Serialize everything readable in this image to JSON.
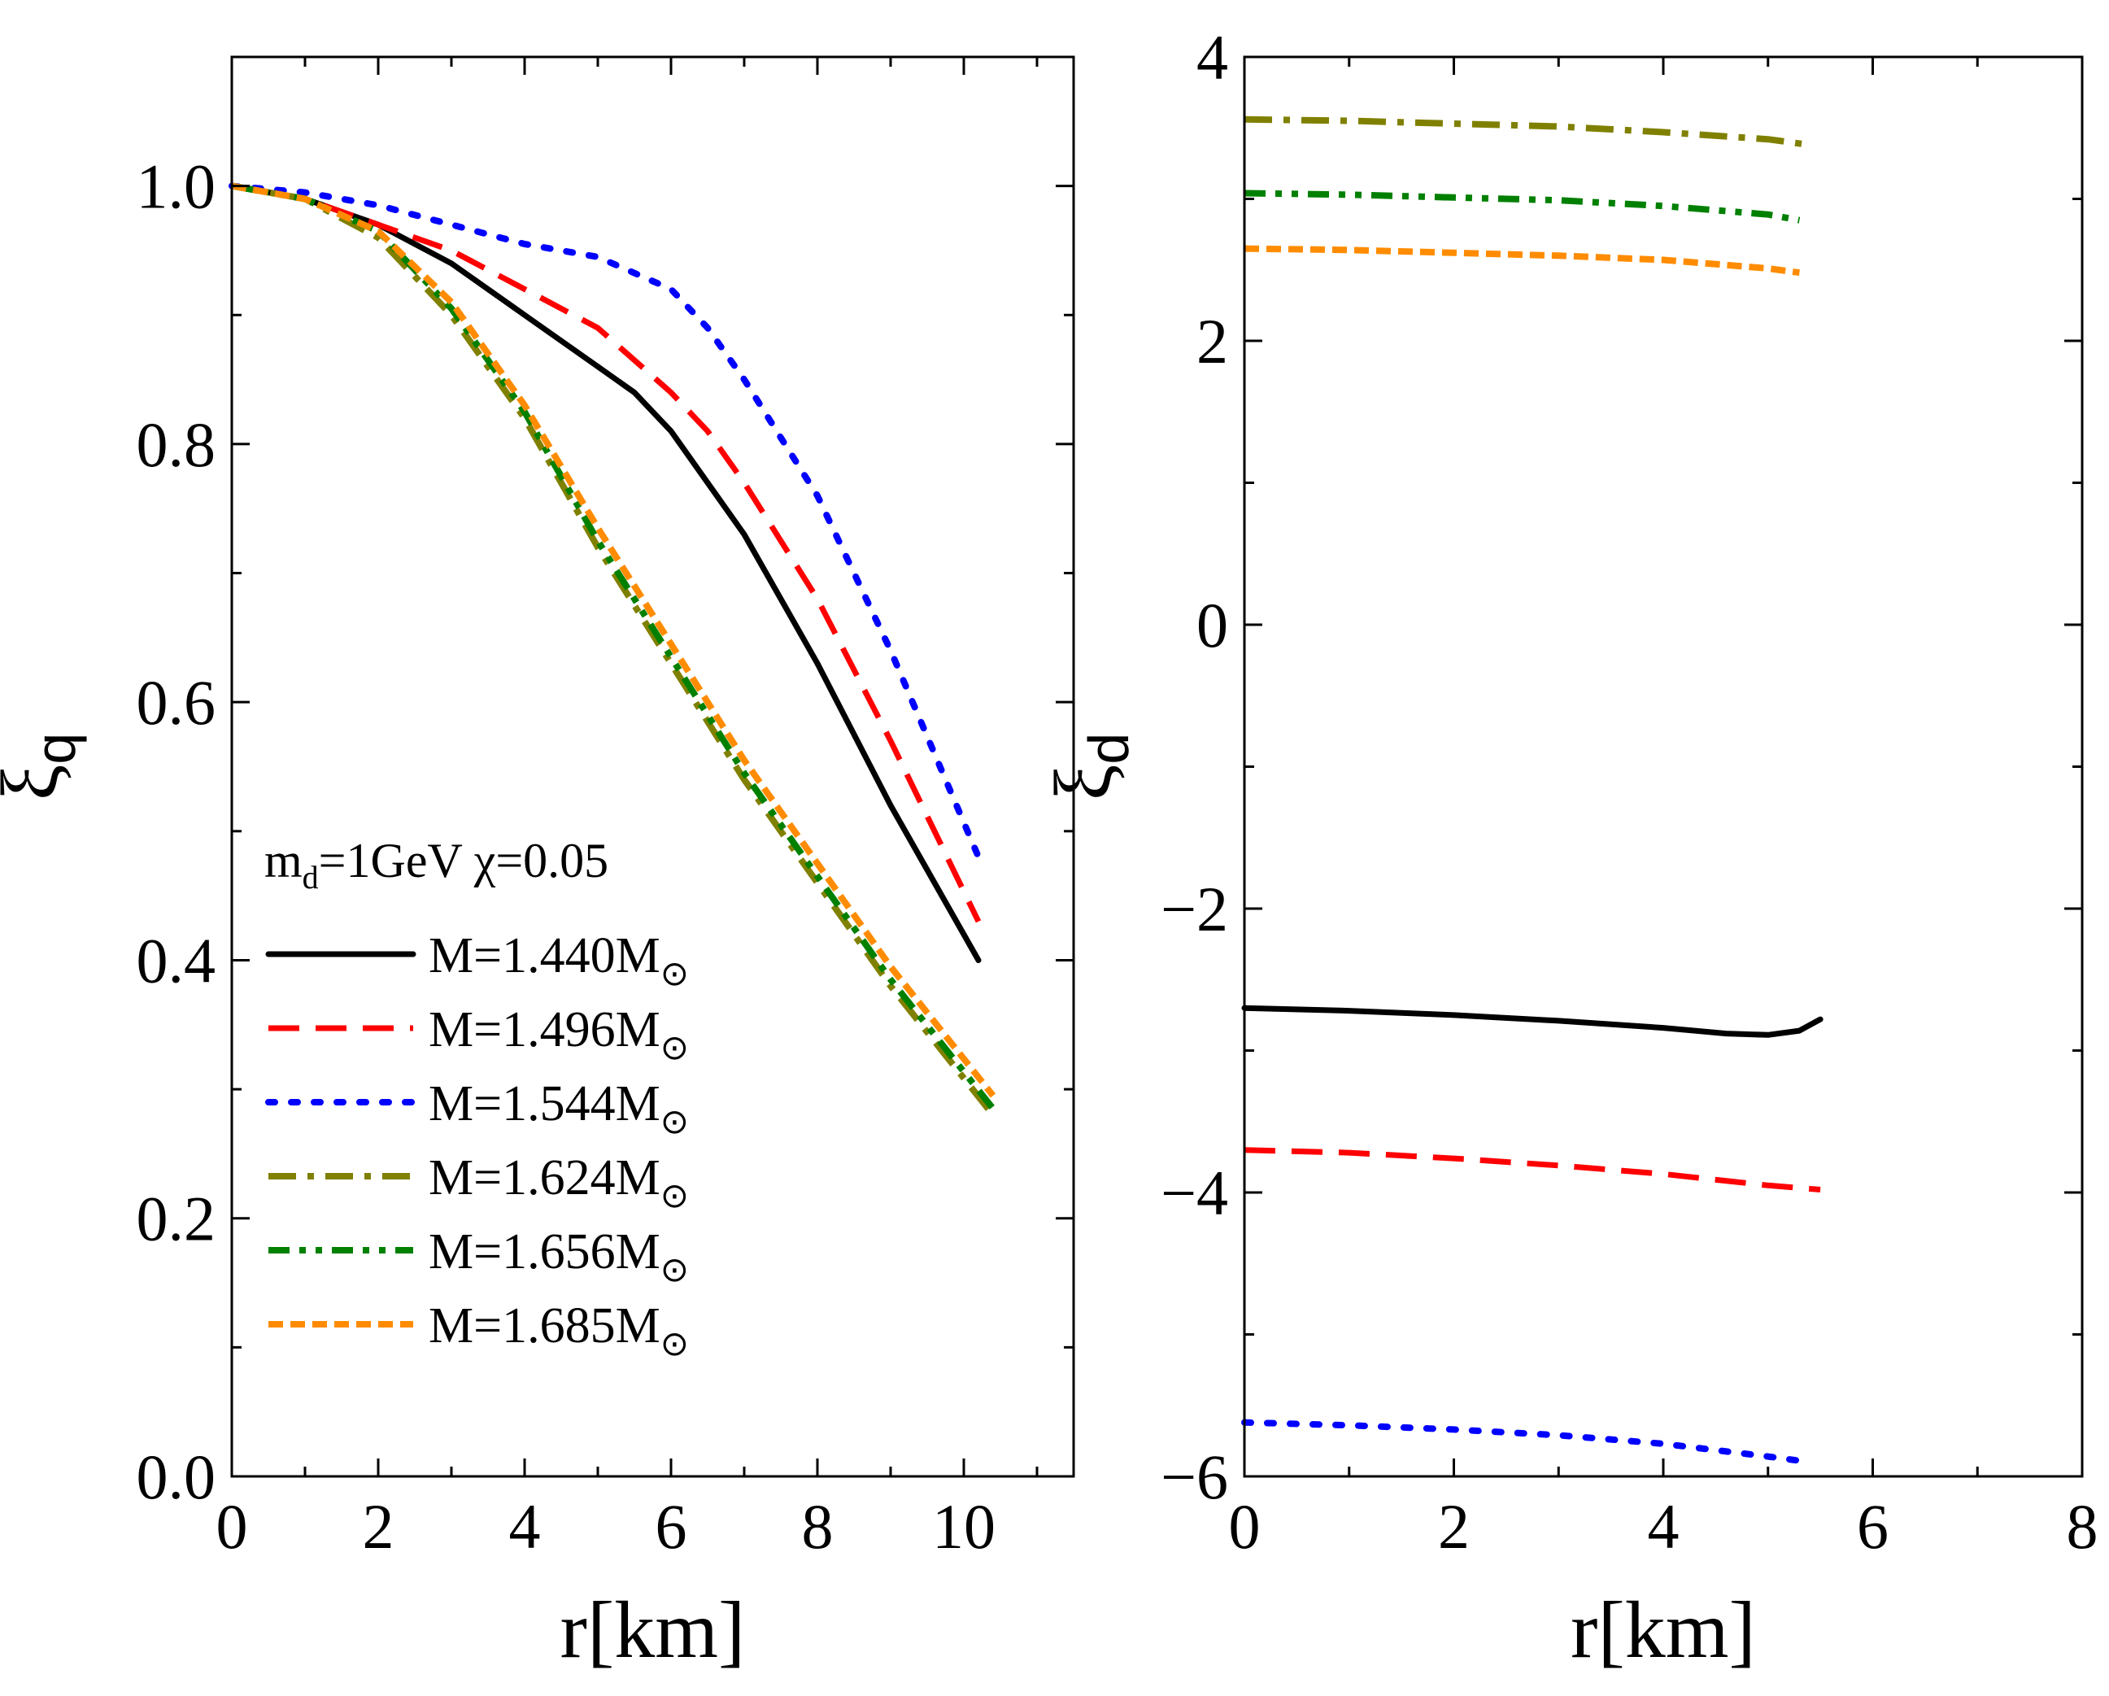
{
  "legend": {
    "title_main": "m",
    "title_sub": "d",
    "title_rest": "=1GeV χ=0.05",
    "mass_symbol": "M",
    "sun_subscript": "⊙"
  },
  "chart_data": [
    {
      "type": "line",
      "panel": "left",
      "xlabel": "r[km]",
      "ylabel_main": "ξ",
      "ylabel_sub": "q",
      "xlim": [
        0,
        11.5
      ],
      "ylim": [
        0,
        1.1
      ],
      "xticks": [
        "0",
        "2",
        "4",
        "6",
        "8",
        "10"
      ],
      "xtick_values": [
        0,
        2,
        4,
        6,
        8,
        10
      ],
      "yticks": [
        "0.0",
        "0.2",
        "0.4",
        "0.6",
        "0.8",
        "1.0"
      ],
      "ytick_values": [
        0,
        0.2,
        0.4,
        0.6,
        0.8,
        1.0
      ],
      "legend_position": "bottom-left",
      "series": [
        {
          "name": "M=1.440M",
          "label": "M=1.440M",
          "color": "#000000",
          "style": "solid",
          "x": [
            0,
            1,
            2,
            3,
            4,
            5,
            5.5,
            6,
            7,
            8,
            9,
            10.2
          ],
          "y": [
            1.0,
            0.99,
            0.97,
            0.94,
            0.9,
            0.86,
            0.84,
            0.81,
            0.73,
            0.63,
            0.52,
            0.4
          ]
        },
        {
          "name": "M=1.496M",
          "label": "M=1.496M",
          "color": "#ff0000",
          "style": "dash",
          "x": [
            0,
            1,
            2,
            3,
            4,
            5,
            6,
            6.5,
            7,
            8,
            9,
            10.2
          ],
          "y": [
            1.0,
            0.99,
            0.97,
            0.95,
            0.92,
            0.89,
            0.84,
            0.81,
            0.77,
            0.68,
            0.57,
            0.43
          ]
        },
        {
          "name": "M=1.544M",
          "label": "M=1.544M",
          "color": "#0000ff",
          "style": "dot",
          "x": [
            0,
            1,
            2,
            3,
            4,
            5,
            6,
            6.5,
            7,
            8,
            9,
            10.2
          ],
          "y": [
            1.0,
            0.995,
            0.985,
            0.97,
            0.955,
            0.945,
            0.92,
            0.89,
            0.85,
            0.76,
            0.64,
            0.48
          ]
        },
        {
          "name": "M=1.624M",
          "label": "M=1.624M",
          "color": "#808000",
          "style": "dashdot",
          "x": [
            0,
            1,
            2,
            3,
            4,
            5,
            6,
            7,
            8,
            9,
            10.4
          ],
          "y": [
            1.0,
            0.99,
            0.96,
            0.9,
            0.82,
            0.72,
            0.63,
            0.54,
            0.46,
            0.38,
            0.28
          ]
        },
        {
          "name": "M=1.656M",
          "label": "M=1.656M",
          "color": "#008000",
          "style": "dashdotdot",
          "x": [
            0,
            1,
            2,
            3,
            4,
            5,
            6,
            7,
            8,
            9,
            10.4
          ],
          "y": [
            1.0,
            0.99,
            0.965,
            0.905,
            0.825,
            0.725,
            0.635,
            0.545,
            0.465,
            0.385,
            0.285
          ]
        },
        {
          "name": "M=1.685M",
          "label": "M=1.685M",
          "color": "#ff8c00",
          "style": "shortdash",
          "x": [
            0,
            1,
            2,
            3,
            4,
            5,
            6,
            7,
            8,
            9,
            10.4
          ],
          "y": [
            1.0,
            0.99,
            0.965,
            0.91,
            0.83,
            0.735,
            0.645,
            0.555,
            0.475,
            0.395,
            0.295
          ]
        }
      ]
    },
    {
      "type": "line",
      "panel": "right",
      "xlabel": "r[km]",
      "ylabel_main": "ξ",
      "ylabel_sub": "d",
      "xlim": [
        0,
        8
      ],
      "ylim": [
        -6,
        4
      ],
      "xticks": [
        "0",
        "2",
        "4",
        "6",
        "8"
      ],
      "xtick_values": [
        0,
        2,
        4,
        6,
        8
      ],
      "yticks": [
        "−6",
        "−4",
        "−2",
        "0",
        "2",
        "4"
      ],
      "ytick_values": [
        -6,
        -4,
        -2,
        0,
        2,
        4
      ],
      "series": [
        {
          "name": "M=1.440M",
          "color": "#000000",
          "style": "solid",
          "x": [
            0,
            1,
            2,
            3,
            4,
            4.6,
            5.0,
            5.3,
            5.5
          ],
          "y": [
            -2.7,
            -2.72,
            -2.75,
            -2.79,
            -2.84,
            -2.88,
            -2.89,
            -2.86,
            -2.78
          ]
        },
        {
          "name": "M=1.496M",
          "color": "#ff0000",
          "style": "dash",
          "x": [
            0,
            1,
            2,
            3,
            4,
            5,
            5.5
          ],
          "y": [
            -3.7,
            -3.72,
            -3.76,
            -3.81,
            -3.87,
            -3.95,
            -3.98
          ]
        },
        {
          "name": "M=1.544M",
          "color": "#0000ff",
          "style": "dot",
          "x": [
            0,
            1,
            2,
            3,
            4,
            5,
            5.4
          ],
          "y": [
            -5.62,
            -5.64,
            -5.67,
            -5.71,
            -5.77,
            -5.86,
            -5.9
          ]
        },
        {
          "name": "M=1.624M",
          "color": "#808000",
          "style": "dashdot",
          "x": [
            0,
            1,
            2,
            3,
            4,
            5,
            5.4
          ],
          "y": [
            3.56,
            3.55,
            3.53,
            3.51,
            3.47,
            3.42,
            3.38
          ]
        },
        {
          "name": "M=1.656M",
          "color": "#008000",
          "style": "dashdotdot",
          "x": [
            0,
            1,
            2,
            3,
            4,
            5,
            5.3
          ],
          "y": [
            3.04,
            3.03,
            3.01,
            2.99,
            2.95,
            2.89,
            2.85
          ]
        },
        {
          "name": "M=1.685M",
          "color": "#ff8c00",
          "style": "shortdash",
          "x": [
            0,
            1,
            2,
            3,
            4,
            5,
            5.3
          ],
          "y": [
            2.65,
            2.64,
            2.62,
            2.6,
            2.57,
            2.51,
            2.48
          ]
        }
      ]
    }
  ]
}
